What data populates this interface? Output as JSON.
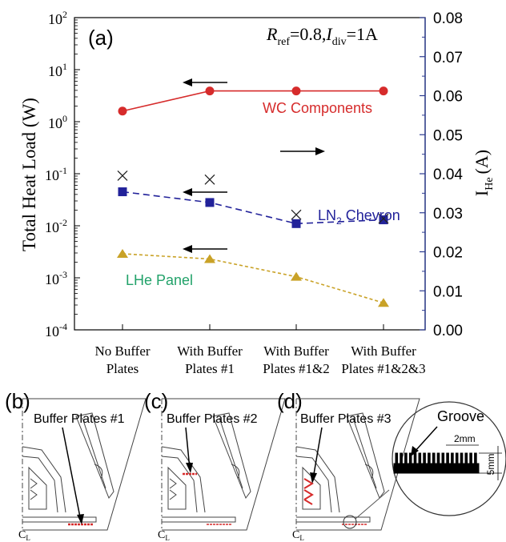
{
  "chart_data": {
    "type": "line",
    "panel_label": "(a)",
    "annotation": {
      "R_sym": "R",
      "R_sub": "ref",
      "R_val": "=0.8,",
      "I_sym": "I",
      "I_sub": "div",
      "I_val": "=1A"
    },
    "categories": [
      [
        "No Buffer",
        "Plates"
      ],
      [
        "With Buffer",
        "Plates #1"
      ],
      [
        "With Buffer",
        "Plates #1&2"
      ],
      [
        "With Buffer",
        "Plates #1&2&3"
      ]
    ],
    "ylabel_left": "Total Heat Load (W)",
    "ylabel_right_main": "I",
    "ylabel_right_sub": "He",
    "ylabel_right_unit": "(A)",
    "yscale_left": "log",
    "ylim_left": [
      0.0001,
      100
    ],
    "left_ticks": [
      {
        "value": 0.0001,
        "base": "10",
        "exp": "-4"
      },
      {
        "value": 0.001,
        "base": "10",
        "exp": "-3"
      },
      {
        "value": 0.01,
        "base": "10",
        "exp": "-2"
      },
      {
        "value": 0.1,
        "base": "10",
        "exp": "-1"
      },
      {
        "value": 1,
        "base": "10",
        "exp": "0"
      },
      {
        "value": 10,
        "base": "10",
        "exp": "1"
      },
      {
        "value": 100,
        "base": "10",
        "exp": "2"
      }
    ],
    "ylim_right": [
      0,
      0.08
    ],
    "right_ticks": [
      "0.00",
      "0.01",
      "0.02",
      "0.03",
      "0.04",
      "0.05",
      "0.06",
      "0.07",
      "0.08"
    ],
    "series": [
      {
        "name": "WC Components",
        "axis": "left",
        "color": "#d62b2b",
        "marker": "circle",
        "line": "solid",
        "values": [
          1.6,
          3.9,
          3.9,
          3.9
        ]
      },
      {
        "name_main": "LN",
        "name_sub": "2",
        "name_rest": " Chevron",
        "axis": "left",
        "color": "#22229a",
        "marker": "square",
        "line": "dashed",
        "values": [
          0.045,
          0.028,
          0.011,
          0.013
        ]
      },
      {
        "name": "LHe Panel",
        "axis": "left",
        "color": "#c9a227",
        "marker": "triangle",
        "line": "dotted",
        "values": [
          0.0029,
          0.0023,
          0.00105,
          0.00033
        ]
      },
      {
        "axis": "right",
        "color": "#222222",
        "marker": "x",
        "line": "none",
        "values": [
          0.0395,
          0.0385,
          0.0295,
          0.0285
        ]
      }
    ],
    "series_label_colors": {
      "wc": "#d62b2b",
      "ln2": "#22229a",
      "lhe": "#22a26a"
    },
    "left_axis_color": "#000000",
    "right_axis_color": "#2b3a8f"
  },
  "panels": {
    "b": {
      "label": "(b)",
      "caption": "Buffer Plates #1"
    },
    "c": {
      "label": "(c)",
      "caption": "Buffer Plates #2"
    },
    "d": {
      "label": "(d)",
      "caption": "Buffer Plates #3"
    },
    "detail": {
      "groove": "Groove",
      "dim_pitch": "2mm",
      "dim_depth": "5mm"
    },
    "centerline_mark": "C",
    "centerline_sub": "L"
  }
}
